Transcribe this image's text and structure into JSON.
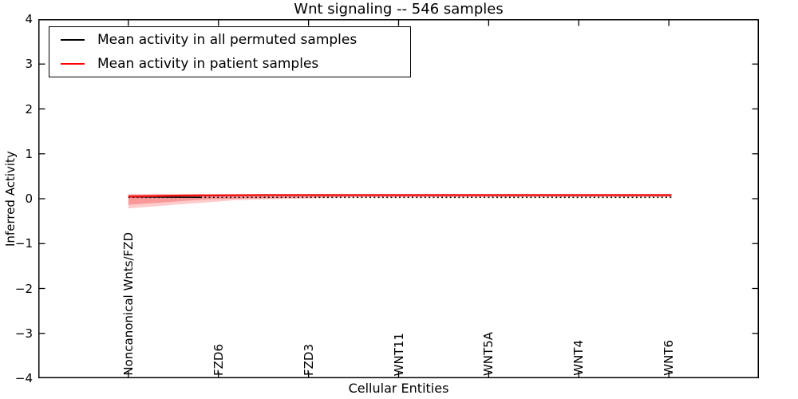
{
  "figure": {
    "title": "Wnt signaling -- 546 samples",
    "xlabel": "Cellular Entities",
    "ylabel": "Inferred Activity"
  },
  "legend": {
    "entries": [
      {
        "label": "Mean activity in all permuted samples",
        "color": "#000000"
      },
      {
        "label": "Mean activity in patient samples",
        "color": "#ff0000"
      }
    ]
  },
  "chart_data": {
    "type": "line",
    "title": "Wnt signaling -- 546 samples",
    "xlabel": "Cellular Entities",
    "ylabel": "Inferred Activity",
    "xlim": [
      0,
      8
    ],
    "ylim": [
      -4,
      4
    ],
    "grid": false,
    "legend_position": "upper left",
    "yticks": [
      4,
      3,
      2,
      1,
      0,
      -1,
      -2,
      -3,
      -4
    ],
    "ytick_labels": [
      "4",
      "3",
      "2",
      "1",
      "0",
      "−1",
      "−2",
      "−3",
      "−4"
    ],
    "categories": [
      "Noncanonical Wnts/FZD",
      "FZD6",
      "FZD3",
      "WNT11",
      "WNT5A",
      "WNT4",
      "WNT6"
    ],
    "x_positions": [
      1,
      2,
      3,
      4,
      5,
      6,
      7
    ],
    "series": [
      {
        "name": "Mean activity in all permuted samples",
        "color": "#111111",
        "linestyle": "dotted",
        "x": [
          1,
          2,
          3,
          4,
          5,
          6,
          7.03
        ],
        "values": [
          0.03,
          0.03,
          0.03,
          0.03,
          0.03,
          0.03,
          0.03
        ]
      },
      {
        "name": "Mean activity in patient samples",
        "color": "#ee1111",
        "linestyle": "solid",
        "x": [
          1,
          1.6,
          2.5,
          7.03
        ],
        "values": [
          0.048,
          0.07,
          0.082,
          0.082
        ]
      }
    ],
    "bands": [
      {
        "color": "#ff4444",
        "opacity": 0.28,
        "x": [
          1,
          2.2,
          3.5,
          7.03
        ],
        "upper": [
          0.105,
          0.1,
          0.1,
          0.1
        ],
        "lower": [
          -0.215,
          -0.03,
          0.03,
          0.038
        ]
      },
      {
        "color": "#ee3333",
        "opacity": 0.33,
        "x": [
          1,
          1.9,
          3.5,
          7.03
        ],
        "upper": [
          0.09,
          0.09,
          0.09,
          0.09
        ],
        "lower": [
          -0.135,
          -0.01,
          0.045,
          0.045
        ]
      }
    ],
    "overlap_segment": {
      "color": "#000000",
      "x": [
        1,
        1.8
      ],
      "values": [
        0.042,
        0.031
      ]
    }
  }
}
